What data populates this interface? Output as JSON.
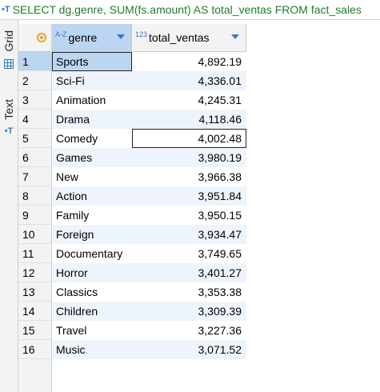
{
  "query_bar": {
    "icon": "sql-editor-icon",
    "text": "SELECT dg.genre, SUM(fs.amount) AS total_ventas FROM fact_sales"
  },
  "side_tabs": {
    "grid_label": "Grid",
    "text_label": "Text"
  },
  "columns": [
    {
      "type_label": "A-Z",
      "name": "genre"
    },
    {
      "type_label": "123",
      "name": "total_ventas"
    }
  ],
  "rows": [
    {
      "num": "1",
      "genre": "Sports",
      "total": "4,892.19"
    },
    {
      "num": "2",
      "genre": "Sci-Fi",
      "total": "4,336.01"
    },
    {
      "num": "3",
      "genre": "Animation",
      "total": "4,245.31"
    },
    {
      "num": "4",
      "genre": "Drama",
      "total": "4,118.46"
    },
    {
      "num": "5",
      "genre": "Comedy",
      "total": "4,002.48"
    },
    {
      "num": "6",
      "genre": "Games",
      "total": "3,980.19"
    },
    {
      "num": "7",
      "genre": "New",
      "total": "3,966.38"
    },
    {
      "num": "8",
      "genre": "Action",
      "total": "3,951.84"
    },
    {
      "num": "9",
      "genre": "Family",
      "total": "3,950.15"
    },
    {
      "num": "10",
      "genre": "Foreign",
      "total": "3,934.47"
    },
    {
      "num": "11",
      "genre": "Documentary",
      "total": "3,749.65"
    },
    {
      "num": "12",
      "genre": "Horror",
      "total": "3,401.27"
    },
    {
      "num": "13",
      "genre": "Classics",
      "total": "3,353.38"
    },
    {
      "num": "14",
      "genre": "Children",
      "total": "3,309.39"
    },
    {
      "num": "15",
      "genre": "Travel",
      "total": "3,227.36"
    },
    {
      "num": "16",
      "genre": "Music",
      "total": "3,071.52"
    }
  ],
  "colors": {
    "selection": "#bcd6f2",
    "alt_row": "#eef4fc",
    "query_text": "#1e7c2a",
    "accent": "#3a78c4"
  }
}
